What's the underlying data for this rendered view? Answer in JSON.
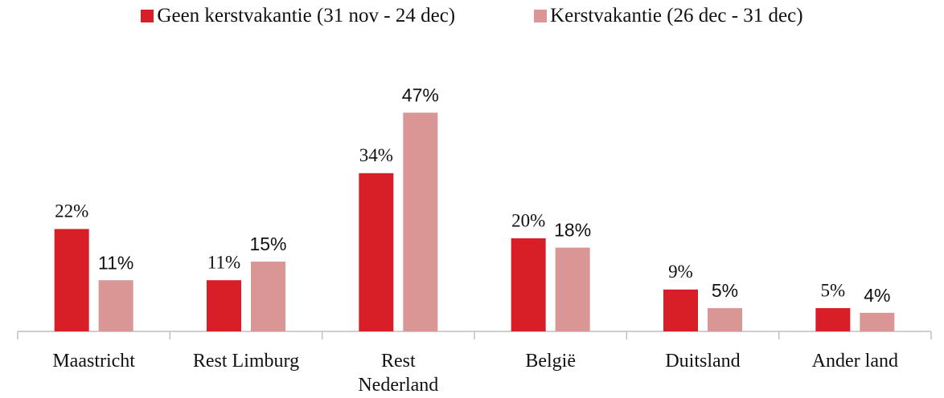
{
  "chart_data": {
    "type": "bar",
    "categories": [
      "Maastricht",
      "Rest Limburg",
      "Rest Nederland",
      "België",
      "Duitsland",
      "Ander land"
    ],
    "series": [
      {
        "name": "Geen kerstvakantie (31 nov - 24 dec)",
        "color": "#d81e27",
        "values": [
          22,
          11,
          34,
          20,
          9,
          5
        ],
        "value_labels": [
          "22%",
          "11%",
          "34%",
          "20%",
          "9%",
          "5%"
        ]
      },
      {
        "name": "Kerstvakantie (26 dec - 31 dec)",
        "color": "#d99694",
        "values": [
          11,
          15,
          47,
          18,
          5,
          4
        ],
        "value_labels": [
          "11%",
          "15%",
          "47%",
          "18%",
          "5%",
          "4%"
        ]
      }
    ],
    "ylim": [
      0,
      50
    ]
  }
}
